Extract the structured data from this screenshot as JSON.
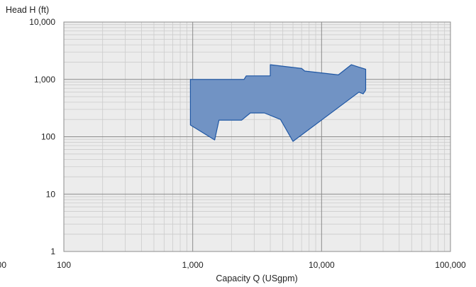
{
  "chart_data": {
    "type": "area",
    "xscale": "log",
    "yscale": "log",
    "xlim": [
      100,
      100000
    ],
    "ylim": [
      1,
      10000
    ],
    "xlabel": "Capacity Q (USgpm)",
    "ylabel": "Head H (ft)",
    "x_ticks": [
      100,
      1000,
      10000,
      100000
    ],
    "x_tick_labels": [
      "100",
      "1,000",
      "10,000",
      "100,000"
    ],
    "y_ticks": [
      1,
      10,
      100,
      1000,
      10000
    ],
    "y_tick_labels": [
      "1",
      "10",
      "100",
      "1,000",
      "10,000"
    ],
    "grid": true,
    "series": [
      {
        "points": [
          [
            960,
            1000
          ],
          [
            2500,
            1000
          ],
          [
            2600,
            1150
          ],
          [
            4000,
            1150
          ],
          [
            4000,
            1800
          ],
          [
            7000,
            1550
          ],
          [
            7400,
            1400
          ],
          [
            13500,
            1200
          ],
          [
            17000,
            1800
          ],
          [
            22000,
            1500
          ],
          [
            22000,
            650
          ],
          [
            21000,
            560
          ],
          [
            19500,
            600
          ],
          [
            6000,
            83
          ],
          [
            4800,
            200
          ],
          [
            3600,
            260
          ],
          [
            2800,
            260
          ],
          [
            2400,
            195
          ],
          [
            1600,
            195
          ],
          [
            1480,
            88
          ],
          [
            960,
            160
          ]
        ]
      }
    ],
    "colors": {
      "fill": "#7193c4",
      "stroke": "#1f57a4",
      "plot_bg": "#ececec",
      "grid_major": "#8c8c8c",
      "grid_minor": "#cccccc"
    }
  },
  "stray_label": "00"
}
